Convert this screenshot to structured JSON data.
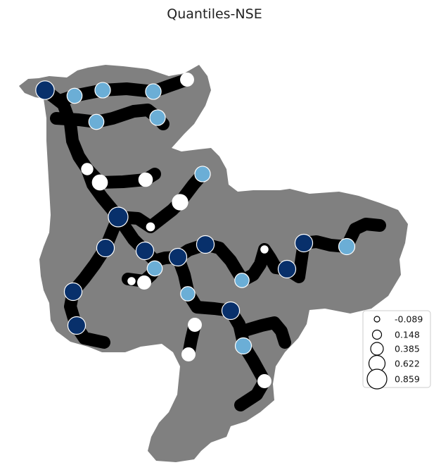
{
  "chart_data": {
    "type": "scatter",
    "title": "Quantiles-NSE",
    "basemap_color": "#808080",
    "river_color": "#000000",
    "marker_edge_color": "#ffffff",
    "quantile_colors": [
      "#ffffff",
      "#6baed6",
      "#08306b"
    ],
    "legend": {
      "placement": "lower-right",
      "entries": [
        "-0.089",
        "0.148",
        "0.385",
        "0.622",
        "0.859"
      ],
      "values": [
        -0.089,
        0.148,
        0.385,
        0.622,
        0.859
      ]
    },
    "stations": [
      {
        "id": "s01",
        "nse": 0.78,
        "quantile": 3
      },
      {
        "id": "s02",
        "nse": 0.55,
        "quantile": 2
      },
      {
        "id": "s03",
        "nse": 0.58,
        "quantile": 2
      },
      {
        "id": "s04",
        "nse": 0.58,
        "quantile": 2
      },
      {
        "id": "s05",
        "nse": 0.42,
        "quantile": 1
      },
      {
        "id": "s06",
        "nse": 0.55,
        "quantile": 2
      },
      {
        "id": "s07",
        "nse": 0.58,
        "quantile": 2
      },
      {
        "id": "s08",
        "nse": 0.3,
        "quantile": 1
      },
      {
        "id": "s09",
        "nse": 0.55,
        "quantile": 1
      },
      {
        "id": "s10",
        "nse": 0.45,
        "quantile": 1
      },
      {
        "id": "s11",
        "nse": 0.58,
        "quantile": 2
      },
      {
        "id": "s12",
        "nse": 0.58,
        "quantile": 1
      },
      {
        "id": "s13",
        "nse": 0.86,
        "quantile": 3
      },
      {
        "id": "s14",
        "nse": 0.08,
        "quantile": 1
      },
      {
        "id": "s15",
        "nse": 0.72,
        "quantile": 3
      },
      {
        "id": "s16",
        "nse": 0.72,
        "quantile": 3
      },
      {
        "id": "s17",
        "nse": 0.55,
        "quantile": 2
      },
      {
        "id": "s18",
        "nse": 0.72,
        "quantile": 3
      },
      {
        "id": "s19",
        "nse": 0.72,
        "quantile": 3
      },
      {
        "id": "s20",
        "nse": 0.02,
        "quantile": 1
      },
      {
        "id": "s21",
        "nse": 0.72,
        "quantile": 3
      },
      {
        "id": "s22",
        "nse": 0.72,
        "quantile": 3
      },
      {
        "id": "s23",
        "nse": 0.5,
        "quantile": 2
      },
      {
        "id": "s24",
        "nse": 0.72,
        "quantile": 3
      },
      {
        "id": "s25",
        "nse": 0.02,
        "quantile": 1
      },
      {
        "id": "s26",
        "nse": 0.42,
        "quantile": 1
      },
      {
        "id": "s27",
        "nse": 0.72,
        "quantile": 3
      },
      {
        "id": "s28",
        "nse": 0.62,
        "quantile": 2
      },
      {
        "id": "s29",
        "nse": 0.72,
        "quantile": 3
      },
      {
        "id": "s30",
        "nse": 0.5,
        "quantile": 2
      },
      {
        "id": "s31",
        "nse": 0.72,
        "quantile": 3
      },
      {
        "id": "s32",
        "nse": 0.5,
        "quantile": 2
      },
      {
        "id": "s33",
        "nse": 0.72,
        "quantile": 3
      },
      {
        "id": "s34",
        "nse": 0.42,
        "quantile": 1
      },
      {
        "id": "s35",
        "nse": 0.62,
        "quantile": 2
      },
      {
        "id": "s36",
        "nse": 0.42,
        "quantile": 1
      },
      {
        "id": "s37",
        "nse": 0.42,
        "quantile": 1
      }
    ]
  }
}
